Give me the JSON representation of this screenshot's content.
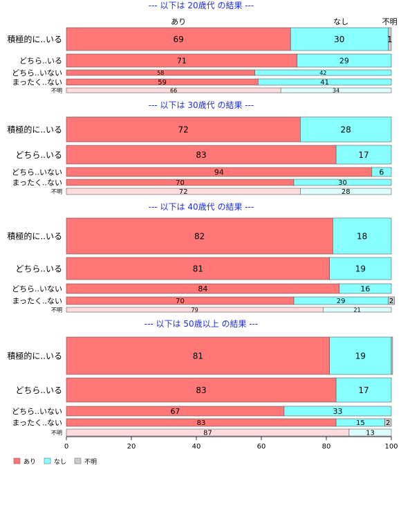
{
  "chart_data": {
    "type": "bar",
    "orientation": "horizontal-stacked-100",
    "xlim": [
      0,
      100
    ],
    "xticks": [
      "0",
      "20",
      "40",
      "60",
      "80",
      "100"
    ],
    "legend": {
      "placement": "bottom-left",
      "items": [
        {
          "label": "あり",
          "color": "#ff7777"
        },
        {
          "label": "なし",
          "color": "#88ffff"
        },
        {
          "label": "不明",
          "color": "#cccccc"
        }
      ]
    },
    "column_labels": [
      "あり",
      "なし",
      "不明"
    ],
    "panels": [
      {
        "title": "--- 以下は 20歳代 の結果 ---",
        "rows": [
          {
            "label": "積極的に..いる",
            "values": [
              69,
              30,
              1
            ],
            "text": [
              "69",
              "30",
              "1"
            ]
          },
          {
            "label": "どちら..いる",
            "values": [
              71,
              29,
              0
            ],
            "text": [
              "71",
              "29",
              ""
            ]
          },
          {
            "label": "どちら..いない",
            "values": [
              58,
              42,
              0
            ],
            "text": [
              "58",
              "42",
              ""
            ]
          },
          {
            "label": "まったく..ない",
            "values": [
              59,
              41,
              0
            ],
            "text": [
              "59",
              "41",
              ""
            ]
          },
          {
            "label": "不明",
            "values": [
              66,
              34,
              0
            ],
            "text": [
              "66",
              "34",
              ""
            ]
          }
        ]
      },
      {
        "title": "--- 以下は 30歳代 の結果 ---",
        "rows": [
          {
            "label": "積極的に..いる",
            "values": [
              72,
              28,
              0
            ],
            "text": [
              "72",
              "28",
              ""
            ]
          },
          {
            "label": "どちら..いる",
            "values": [
              83,
              17,
              0
            ],
            "text": [
              "83",
              "17",
              ""
            ]
          },
          {
            "label": "どちら..いない",
            "values": [
              94,
              6,
              0
            ],
            "text": [
              "94",
              "6",
              ""
            ]
          },
          {
            "label": "まったく..ない",
            "values": [
              70,
              30,
              0
            ],
            "text": [
              "70",
              "30",
              ""
            ]
          },
          {
            "label": "不明",
            "values": [
              72,
              28,
              0
            ],
            "text": [
              "72",
              "28",
              ""
            ]
          }
        ]
      },
      {
        "title": "--- 以下は 40歳代 の結果 ---",
        "rows": [
          {
            "label": "積極的に..いる",
            "values": [
              82,
              18,
              0
            ],
            "text": [
              "82",
              "18",
              ""
            ]
          },
          {
            "label": "どちら..いる",
            "values": [
              81,
              19,
              0
            ],
            "text": [
              "81",
              "19",
              ""
            ]
          },
          {
            "label": "どちら..いない",
            "values": [
              84,
              16,
              0
            ],
            "text": [
              "84",
              "16",
              ""
            ]
          },
          {
            "label": "まったく..ない",
            "values": [
              70,
              29,
              2
            ],
            "text": [
              "70",
              "29",
              "2"
            ]
          },
          {
            "label": "不明",
            "values": [
              79,
              21,
              0
            ],
            "text": [
              "79",
              "21",
              ""
            ]
          }
        ]
      },
      {
        "title": "--- 以下は 50歳以上 の結果 ---",
        "rows": [
          {
            "label": "積極的に..いる",
            "values": [
              81,
              19,
              0.4
            ],
            "text": [
              "81",
              "19",
              ""
            ]
          },
          {
            "label": "どちら..いる",
            "values": [
              83,
              17,
              0
            ],
            "text": [
              "83",
              "17",
              ""
            ]
          },
          {
            "label": "どちら..いない",
            "values": [
              67,
              33,
              0
            ],
            "text": [
              "67",
              "33",
              ""
            ]
          },
          {
            "label": "まったく..ない",
            "values": [
              83,
              15,
              2
            ],
            "text": [
              "83",
              "15",
              "2"
            ]
          },
          {
            "label": "不明",
            "values": [
              87,
              13,
              0
            ],
            "text": [
              "87",
              "13",
              ""
            ]
          }
        ]
      }
    ]
  },
  "colors": {
    "ari": "#ff7777",
    "nashi": "#88ffff",
    "fumei": "#cccccc",
    "ari_light": "#ffdddd",
    "nashi_light": "#ddffff",
    "title": "#1f2ee0"
  }
}
